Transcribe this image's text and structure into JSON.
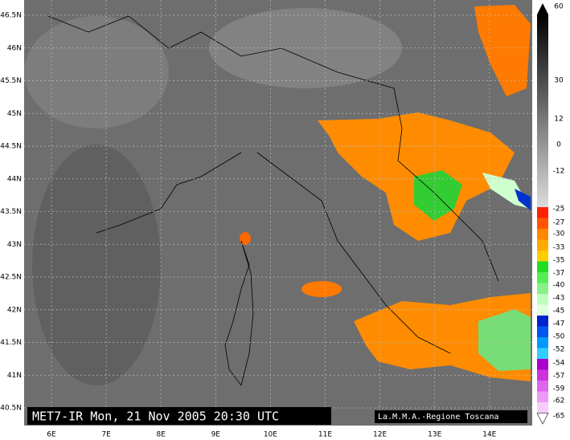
{
  "caption": "MET7-IR Mon, 21 Nov 2005 20:30 UTC",
  "credit": "La.M.M.A.-Regione Toscana",
  "lat_labels": [
    "46.5N",
    "46N",
    "45.5N",
    "45N",
    "44.5N",
    "44N",
    "43.5N",
    "43N",
    "42.5N",
    "42N",
    "41.5N",
    "41N",
    "40.5N"
  ],
  "lon_labels": [
    "6E",
    "7E",
    "8E",
    "9E",
    "10E",
    "11E",
    "12E",
    "13E",
    "14E"
  ],
  "scale_labels": [
    "60",
    "30",
    "12",
    "0",
    "-12",
    "-25",
    "-27",
    "-30",
    "-33",
    "-35",
    "-37",
    "-40",
    "-43",
    "-45",
    "-47",
    "-50",
    "-52",
    "-54",
    "-57",
    "-59",
    "-62",
    "-65"
  ]
}
